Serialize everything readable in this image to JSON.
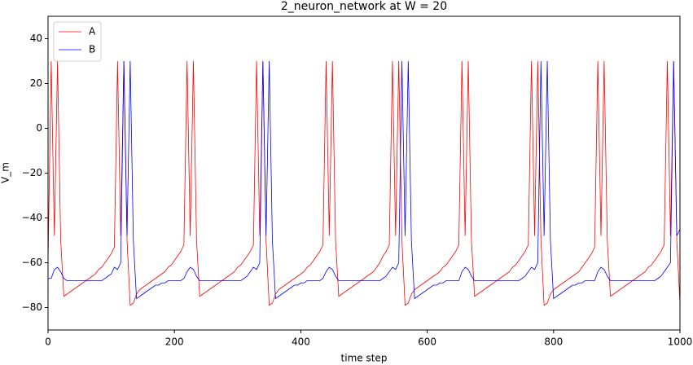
{
  "chart_data": {
    "type": "line",
    "title": "2_neuron_network at W = 20",
    "x_label": "time step",
    "y_label": "V_m",
    "xlim": [
      0,
      1000
    ],
    "ylim": [
      -90,
      50
    ],
    "xticks": [
      0,
      200,
      400,
      600,
      800,
      1000
    ],
    "yticks": [
      {
        "value": -80,
        "label": "−80"
      },
      {
        "value": -60,
        "label": "−60"
      },
      {
        "value": -40,
        "label": "−40"
      },
      {
        "value": -20,
        "label": "−20"
      },
      0,
      20,
      40
    ],
    "legend": "upper left",
    "grid": false,
    "x": [
      0,
      5,
      10,
      15,
      20,
      25,
      30,
      35,
      40,
      45,
      50,
      55,
      60,
      65,
      70,
      75,
      80,
      85,
      90,
      95,
      100,
      105,
      110,
      115,
      120,
      125,
      130,
      135,
      140,
      145,
      150,
      155,
      160,
      165,
      170,
      175,
      180,
      185,
      190,
      195,
      200,
      205,
      210,
      215,
      220,
      225,
      230,
      235,
      240,
      245,
      250,
      255,
      260,
      265,
      270,
      275,
      280,
      285,
      290,
      295,
      300,
      305,
      310,
      315,
      320,
      325,
      330,
      335,
      340,
      345,
      350,
      355,
      360,
      365,
      370,
      375,
      380,
      385,
      390,
      395,
      400,
      405,
      410,
      415,
      420,
      425,
      430,
      435,
      440,
      445,
      450,
      455,
      460,
      465,
      470,
      475,
      480,
      485,
      490,
      495,
      500,
      505,
      510,
      515,
      520,
      525,
      530,
      535,
      540,
      545,
      550,
      555,
      560,
      565,
      570,
      575,
      580,
      585,
      590,
      595,
      600,
      605,
      610,
      615,
      620,
      625,
      630,
      635,
      640,
      645,
      650,
      655,
      660,
      665,
      670,
      675,
      680,
      685,
      690,
      695,
      700,
      705,
      710,
      715,
      720,
      725,
      730,
      735,
      740,
      745,
      750,
      755,
      760,
      765,
      770,
      775,
      780,
      785,
      790,
      795,
      800,
      805,
      810,
      815,
      820,
      825,
      830,
      835,
      840,
      845,
      850,
      855,
      860,
      865,
      870,
      875,
      880,
      885,
      890,
      895,
      900,
      905,
      910,
      915,
      920,
      925,
      930,
      935,
      940,
      945,
      950,
      955,
      960,
      965,
      970,
      975,
      980,
      985,
      990,
      995,
      1000
    ],
    "series": [
      {
        "name": "A",
        "color": "#ff0000",
        "values": [
          -60,
          30,
          -48,
          30,
          -50,
          -75,
          -74,
          -73,
          -72,
          -71,
          -70,
          -69,
          -68,
          -67,
          -66,
          -65,
          -63,
          -62,
          -60,
          -58,
          -56,
          -53,
          30,
          -48,
          30,
          -50,
          -79,
          -78,
          -74,
          -72,
          -71,
          -70,
          -69,
          -68,
          -67,
          -66,
          -65,
          -64,
          -62,
          -61,
          -59,
          -57,
          -55,
          -52,
          30,
          -48,
          30,
          -50,
          -75,
          -74,
          -73,
          -72,
          -71,
          -70,
          -69,
          -68,
          -67,
          -66,
          -65,
          -64,
          -62,
          -61,
          -59,
          -57,
          -55,
          -52,
          30,
          -48,
          30,
          -50,
          -79,
          -78,
          -74,
          -72,
          -71,
          -70,
          -69,
          -68,
          -67,
          -66,
          -65,
          -64,
          -62,
          -61,
          -59,
          -57,
          -55,
          -52,
          30,
          -48,
          30,
          -50,
          -75,
          -74,
          -73,
          -72,
          -71,
          -70,
          -69,
          -68,
          -67,
          -66,
          -65,
          -64,
          -62,
          -60,
          -57,
          -55,
          -52,
          30,
          -48,
          30,
          -50,
          -79,
          -78,
          -74,
          -72,
          -71,
          -70,
          -69,
          -68,
          -67,
          -66,
          -65,
          -64,
          -62,
          -61,
          -59,
          -57,
          -55,
          -52,
          30,
          -48,
          30,
          -50,
          -75,
          -74,
          -73,
          -72,
          -71,
          -70,
          -69,
          -68,
          -67,
          -66,
          -65,
          -64,
          -62,
          -61,
          -59,
          -57,
          -55,
          -52,
          30,
          -48,
          30,
          -50,
          -79,
          -78,
          -74,
          -72,
          -71,
          -70,
          -69,
          -68,
          -67,
          -66,
          -65,
          -64,
          -62,
          -60,
          -58,
          -56,
          -53,
          30,
          -48,
          30,
          -50,
          -75,
          -74,
          -73,
          -72,
          -71,
          -70,
          -69,
          -68,
          -67,
          -66,
          -65,
          -64,
          -62,
          -61,
          -59,
          -57,
          -55,
          -52,
          30,
          -48,
          30,
          -50,
          -78
        ]
      },
      {
        "name": "B",
        "color": "#0000ff",
        "values": [
          -67,
          -67,
          -63,
          -62,
          -64,
          -67,
          -68,
          -68,
          -68,
          -68,
          -68,
          -68,
          -68,
          -68,
          -68,
          -68,
          -68,
          -68,
          -67,
          -66,
          -65,
          -62,
          -63,
          -60,
          30,
          -48,
          30,
          -50,
          -76,
          -75,
          -74,
          -73,
          -72,
          -71,
          -70,
          -70,
          -69,
          -69,
          -68,
          -68,
          -68,
          -68,
          -68,
          -67,
          -64,
          -62,
          -63,
          -66,
          -68,
          -68,
          -68,
          -68,
          -68,
          -68,
          -68,
          -68,
          -68,
          -68,
          -68,
          -68,
          -68,
          -68,
          -67,
          -66,
          -64,
          -62,
          -63,
          -60,
          30,
          -48,
          30,
          -50,
          -76,
          -75,
          -74,
          -73,
          -72,
          -71,
          -70,
          -70,
          -69,
          -69,
          -68,
          -68,
          -68,
          -68,
          -68,
          -67,
          -64,
          -62,
          -63,
          -66,
          -68,
          -68,
          -68,
          -68,
          -68,
          -68,
          -68,
          -68,
          -68,
          -68,
          -68,
          -68,
          -68,
          -68,
          -67,
          -66,
          -64,
          -62,
          -63,
          -60,
          30,
          -48,
          30,
          -50,
          -76,
          -75,
          -74,
          -73,
          -72,
          -71,
          -70,
          -70,
          -69,
          -69,
          -68,
          -68,
          -68,
          -68,
          -68,
          -64,
          -62,
          -63,
          -66,
          -68,
          -68,
          -68,
          -68,
          -68,
          -68,
          -68,
          -68,
          -68,
          -68,
          -68,
          -68,
          -68,
          -68,
          -68,
          -67,
          -66,
          -64,
          -62,
          -63,
          -60,
          30,
          -48,
          30,
          -50,
          -76,
          -75,
          -74,
          -73,
          -72,
          -71,
          -70,
          -70,
          -69,
          -69,
          -68,
          -68,
          -68,
          -68,
          -64,
          -62,
          -63,
          -66,
          -68,
          -68,
          -68,
          -68,
          -68,
          -68,
          -68,
          -68,
          -68,
          -68,
          -68,
          -68,
          -68,
          -68,
          -68,
          -67,
          -66,
          -64,
          -62,
          -60,
          30,
          -48,
          -45
        ]
      }
    ]
  }
}
